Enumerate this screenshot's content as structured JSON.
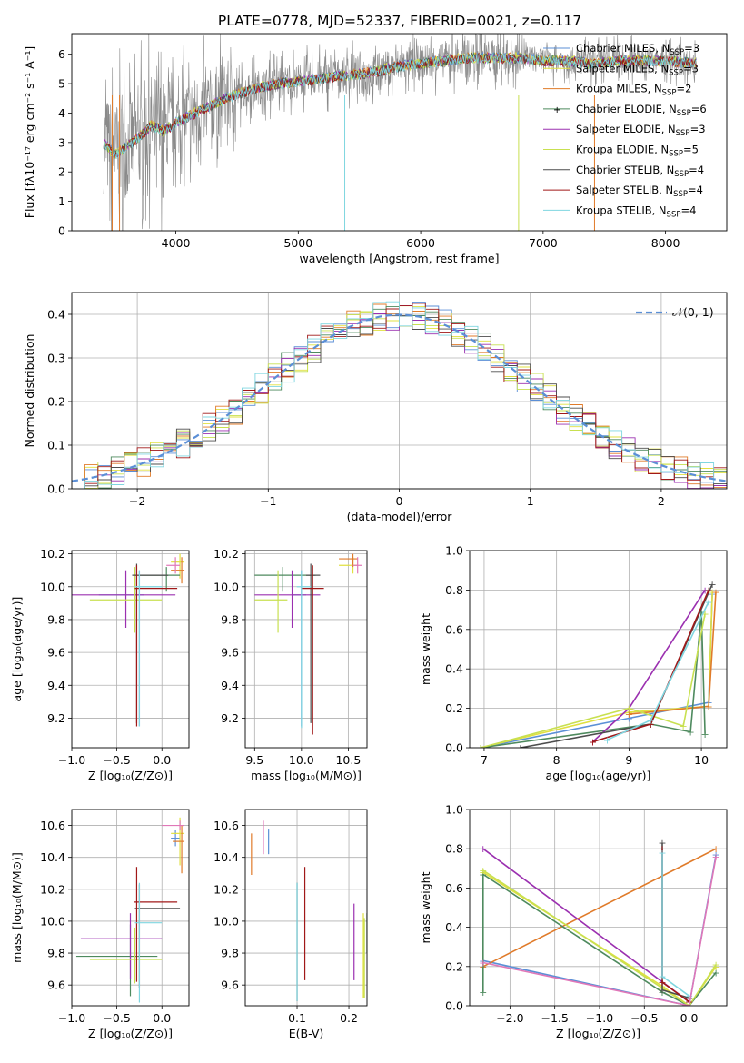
{
  "title": "PLATE=0778, MJD=52337, FIBERID=0021, z=0.117",
  "colors": [
    "#1f1f1f",
    "#e8e84a",
    "#e07b2a",
    "#5a8a5a",
    "#9b30b0",
    "#c8e050",
    "#555555",
    "#a01818",
    "#80d8e0"
  ],
  "models": [
    {
      "name": "Chabrier MILES, N",
      "sub": "SSP",
      "suffix": "=3",
      "color": "#5b8fd6"
    },
    {
      "name": "Salpeter MILES, N",
      "sub": "SSP",
      "suffix": "=3",
      "color": "#e0e040"
    },
    {
      "name": "Kroupa MILES, N",
      "sub": "SSP",
      "suffix": "=2",
      "color": "#e07b2a"
    },
    {
      "name": "Chabrier ELODIE, N",
      "sub": "SSP",
      "suffix": "=6",
      "color": "#4e8a5e"
    },
    {
      "name": "Salpeter ELODIE, N",
      "sub": "SSP",
      "suffix": "=3",
      "color": "#9b30b0"
    },
    {
      "name": "Kroupa ELODIE, N",
      "sub": "SSP",
      "suffix": "=5",
      "color": "#c8e050"
    },
    {
      "name": "Chabrier STELIB, N",
      "sub": "SSP",
      "suffix": "=4",
      "color": "#4d4d4d"
    },
    {
      "name": "Salpeter STELIB, N",
      "sub": "SSP",
      "suffix": "=4",
      "color": "#a01818"
    },
    {
      "name": "Kroupa STELIB, N",
      "sub": "SSP",
      "suffix": "=4",
      "color": "#7fd6e0"
    }
  ],
  "chart_data": [
    {
      "type": "line",
      "title": "PLATE=0778, MJD=52337, FIBERID=0021, z=0.117",
      "xlabel": "wavelength [Angstrom, rest frame]",
      "ylabel": "Flux [fλ10⁻¹⁷ erg cm⁻² s⁻¹ A⁻¹]",
      "xlim": [
        3150,
        8500
      ],
      "ylim": [
        0,
        6.7
      ],
      "xticks": [
        4000,
        5000,
        6000,
        7000,
        8000
      ],
      "yticks": [
        0,
        1,
        2,
        3,
        4,
        5,
        6
      ],
      "continuum": [
        [
          3410,
          3.0
        ],
        [
          3500,
          2.6
        ],
        [
          3600,
          2.9
        ],
        [
          3700,
          3.2
        ],
        [
          3800,
          3.6
        ],
        [
          3900,
          3.4
        ],
        [
          4000,
          3.7
        ],
        [
          4200,
          4.1
        ],
        [
          4400,
          4.5
        ],
        [
          4600,
          4.8
        ],
        [
          4800,
          5.0
        ],
        [
          5000,
          5.1
        ],
        [
          5200,
          5.2
        ],
        [
          5400,
          5.3
        ],
        [
          5600,
          5.4
        ],
        [
          5800,
          5.6
        ],
        [
          6000,
          5.7
        ],
        [
          6200,
          5.8
        ],
        [
          6400,
          5.9
        ],
        [
          6600,
          5.9
        ],
        [
          6800,
          5.9
        ],
        [
          7000,
          5.8
        ],
        [
          7200,
          5.8
        ],
        [
          7400,
          5.7
        ],
        [
          7600,
          5.8
        ],
        [
          7800,
          5.8
        ],
        [
          8000,
          5.8
        ],
        [
          8250,
          5.7
        ]
      ]
    },
    {
      "type": "bar",
      "xlabel": "(data-model)/error",
      "ylabel": "Normed distribution",
      "xlim": [
        -2.5,
        2.5
      ],
      "ylim": [
        0,
        0.45
      ],
      "xticks": [
        -2,
        -1,
        0,
        1,
        2
      ],
      "yticks": [
        0.0,
        0.1,
        0.2,
        0.3,
        0.4
      ],
      "reference": "𝒩(0, 1)",
      "bin_width": 0.1
    },
    {
      "type": "scatter",
      "xlabel": "Z [log₁₀(Z/Z⊙)]",
      "ylabel": "age  [log₁₀(age/yr)]",
      "xlim": [
        -1.0,
        0.3
      ],
      "ylim": [
        9.02,
        10.22
      ],
      "xticks": [
        -1.0,
        -0.5,
        0.0
      ],
      "yticks": [
        9.2,
        9.4,
        9.6,
        9.8,
        10.0,
        10.2
      ],
      "points": [
        {
          "x": -0.25,
          "xerr": [
            0.45,
            0.05
          ],
          "y": 9.95,
          "yerr": [
            0.8,
            0.15
          ],
          "color": "#5b8fd6"
        },
        {
          "x": 0.2,
          "xerr": [
            0.1,
            0.05
          ],
          "y": 10.15,
          "yerr": [
            0.1,
            0.05
          ],
          "color": "#e0e040"
        },
        {
          "x": 0.22,
          "xerr": [
            0.12,
            0.03
          ],
          "y": 10.1,
          "yerr": [
            0.08,
            0.08
          ],
          "color": "#e07b2a"
        },
        {
          "x": 0.05,
          "xerr": [
            0.35,
            0.15
          ],
          "y": 10.07,
          "yerr": [
            0.1,
            0.05
          ],
          "color": "#4e8a5e"
        },
        {
          "x": -0.4,
          "xerr": [
            0.6,
            0.55
          ],
          "y": 9.95,
          "yerr": [
            0.2,
            0.15
          ],
          "color": "#9b30b0"
        },
        {
          "x": -0.3,
          "xerr": [
            0.5,
            0.3
          ],
          "y": 9.92,
          "yerr": [
            0.2,
            0.2
          ],
          "color": "#c8e050"
        },
        {
          "x": -0.28,
          "xerr": [
            0.05,
            0.35
          ],
          "y": 10.07,
          "yerr": [
            0.9,
            0.07
          ],
          "color": "#4d4d4d"
        },
        {
          "x": -0.28,
          "xerr": [
            0.02,
            0.45
          ],
          "y": 9.99,
          "yerr": [
            0.84,
            0.14
          ],
          "color": "#a01818"
        },
        {
          "x": -0.25,
          "xerr": [
            0.05,
            0.25
          ],
          "y": 10.0,
          "yerr": [
            0.85,
            0.1
          ],
          "color": "#7fd6e0"
        },
        {
          "x": 0.15,
          "xerr": [
            0.1,
            0.05
          ],
          "y": 10.13,
          "yerr": [
            0.05,
            0.05
          ],
          "color": "#e077b8"
        }
      ]
    },
    {
      "type": "scatter",
      "xlabel": "mass [log₁₀(M/M⊙)]",
      "xlim": [
        9.4,
        10.7
      ],
      "ylim": [
        9.02,
        10.22
      ],
      "xticks": [
        9.5,
        10.0,
        10.5
      ],
      "yticks": [
        9.2,
        9.4,
        9.6,
        9.8,
        10.0,
        10.2
      ],
      "points": [
        {
          "x": 10.0,
          "xerr": [
            0.1,
            0.05
          ],
          "y": 9.95,
          "yerr": [
            0.8,
            0.15
          ],
          "color": "#5b8fd6"
        },
        {
          "x": 10.55,
          "xerr": [
            0.15,
            0.05
          ],
          "y": 10.13,
          "yerr": [
            0.05,
            0.05
          ],
          "color": "#e0e040"
        },
        {
          "x": 10.55,
          "xerr": [
            0.15,
            0.05
          ],
          "y": 10.17,
          "yerr": [
            0.05,
            0.03
          ],
          "color": "#e07b2a"
        },
        {
          "x": 9.8,
          "xerr": [
            0.3,
            0.35
          ],
          "y": 10.07,
          "yerr": [
            0.1,
            0.05
          ],
          "color": "#4e8a5e"
        },
        {
          "x": 9.9,
          "xerr": [
            0.4,
            0.3
          ],
          "y": 9.95,
          "yerr": [
            0.2,
            0.15
          ],
          "color": "#9b30b0"
        },
        {
          "x": 9.75,
          "xerr": [
            0.25,
            0.1
          ],
          "y": 9.92,
          "yerr": [
            0.2,
            0.18
          ],
          "color": "#c8e050"
        },
        {
          "x": 10.1,
          "xerr": [
            0.05,
            0.1
          ],
          "y": 10.07,
          "yerr": [
            0.9,
            0.07
          ],
          "color": "#4d4d4d"
        },
        {
          "x": 10.12,
          "xerr": [
            0.12,
            0.12
          ],
          "y": 9.99,
          "yerr": [
            0.89,
            0.14
          ],
          "color": "#a01818"
        },
        {
          "x": 10.0,
          "xerr": [
            0.05,
            0.1
          ],
          "y": 10.0,
          "yerr": [
            0.86,
            0.1
          ],
          "color": "#7fd6e0"
        },
        {
          "x": 10.6,
          "xerr": [
            0.05,
            0.05
          ],
          "y": 10.13,
          "yerr": [
            0.05,
            0.05
          ],
          "color": "#e077b8"
        }
      ]
    },
    {
      "type": "line",
      "xlabel": "age  [log₁₀(age/yr)]",
      "ylabel": "mass weight",
      "xlim": [
        6.8,
        10.35
      ],
      "ylim": [
        0,
        1.0
      ],
      "xticks": [
        7,
        8,
        9,
        10
      ],
      "yticks": [
        0.0,
        0.2,
        0.4,
        0.6,
        0.8,
        1.0
      ],
      "series": [
        {
          "color": "#5b8fd6",
          "x": [
            6.95,
            9.0,
            10.1,
            10.15
          ],
          "y": [
            0.0,
            0.15,
            0.23,
            0.78
          ]
        },
        {
          "color": "#e0e040",
          "x": [
            6.95,
            9.0,
            10.1,
            10.15
          ],
          "y": [
            0.0,
            0.18,
            0.21,
            0.79
          ]
        },
        {
          "color": "#e07b2a",
          "x": [
            9.0,
            10.1,
            10.2
          ],
          "y": [
            0.17,
            0.21,
            0.79
          ]
        },
        {
          "color": "#4e8a5e",
          "x": [
            6.95,
            9.3,
            9.85,
            10.0,
            10.05
          ],
          "y": [
            0.0,
            0.12,
            0.08,
            0.69,
            0.07
          ]
        },
        {
          "color": "#9b30b0",
          "x": [
            8.5,
            9.0,
            10.05
          ],
          "y": [
            0.03,
            0.2,
            0.8
          ]
        },
        {
          "color": "#c8e050",
          "x": [
            6.95,
            9.0,
            9.75,
            10.05
          ],
          "y": [
            0.0,
            0.2,
            0.11,
            0.68
          ]
        },
        {
          "color": "#4d4d4d",
          "x": [
            7.5,
            9.3,
            10.15
          ],
          "y": [
            0.0,
            0.12,
            0.83
          ]
        },
        {
          "color": "#a01818",
          "x": [
            8.5,
            9.3,
            10.1
          ],
          "y": [
            0.03,
            0.12,
            0.8
          ]
        },
        {
          "color": "#7fd6e0",
          "x": [
            8.7,
            9.3,
            10.1
          ],
          "y": [
            0.04,
            0.14,
            0.74
          ]
        }
      ]
    },
    {
      "type": "scatter",
      "xlabel": "Z [log₁₀(Z/Z⊙)]",
      "ylabel": "mass [log₁₀(M/M⊙)]",
      "xlim": [
        -1.0,
        0.3
      ],
      "ylim": [
        9.47,
        10.7
      ],
      "xticks": [
        -1.0,
        -0.5,
        0.0
      ],
      "yticks": [
        9.6,
        9.8,
        10.0,
        10.2,
        10.4,
        10.6
      ],
      "points": [
        {
          "x": 0.15,
          "xerr": [
            0.05,
            0.05
          ],
          "y": 10.52,
          "yerr": [
            0.05,
            0.05
          ],
          "color": "#5b8fd6"
        },
        {
          "x": 0.2,
          "xerr": [
            0.1,
            0.05
          ],
          "y": 10.55,
          "yerr": [
            0.2,
            0.1
          ],
          "color": "#e0e040"
        },
        {
          "x": 0.22,
          "xerr": [
            0.1,
            0.03
          ],
          "y": 10.5,
          "yerr": [
            0.2,
            0.1
          ],
          "color": "#e07b2a"
        },
        {
          "x": -0.35,
          "xerr": [
            0.6,
            0.3
          ],
          "y": 9.78,
          "yerr": [
            0.25,
            0.2
          ],
          "color": "#4e8a5e"
        },
        {
          "x": -0.35,
          "xerr": [
            0.55,
            0.35
          ],
          "y": 9.89,
          "yerr": [
            0.25,
            0.16
          ],
          "color": "#9b30b0"
        },
        {
          "x": -0.3,
          "xerr": [
            0.5,
            0.3
          ],
          "y": 9.76,
          "yerr": [
            0.15,
            0.2
          ],
          "color": "#c8e050"
        },
        {
          "x": -0.25,
          "xerr": [
            0.05,
            0.45
          ],
          "y": 10.08,
          "yerr": [
            0.5,
            0.15
          ],
          "color": "#4d4d4d"
        },
        {
          "x": -0.28,
          "xerr": [
            0.03,
            0.45
          ],
          "y": 10.12,
          "yerr": [
            0.5,
            0.22
          ],
          "color": "#a01818"
        },
        {
          "x": -0.25,
          "xerr": [
            0.05,
            0.25
          ],
          "y": 9.99,
          "yerr": [
            0.5,
            0.25
          ],
          "color": "#7fd6e0"
        },
        {
          "x": 0.2,
          "xerr": [
            0.2,
            0.05
          ],
          "y": 10.6,
          "yerr": [
            0.03,
            0.03
          ],
          "color": "#e077b8"
        }
      ]
    },
    {
      "type": "scatter",
      "xlabel": "E(B-V)",
      "xlim": [
        0.0,
        0.235
      ],
      "ylim": [
        9.47,
        10.7
      ],
      "xticks": [
        0.1,
        0.2
      ],
      "yticks": [
        9.6,
        9.8,
        10.0,
        10.2,
        10.4,
        10.6
      ],
      "points": [
        {
          "x": 0.045,
          "y": 10.52,
          "yerr": [
            0.1,
            0.06
          ],
          "color": "#5b8fd6"
        },
        {
          "x": 0.228,
          "y": 9.8,
          "yerr": [
            0.28,
            0.25
          ],
          "color": "#e0e040"
        },
        {
          "x": 0.012,
          "y": 10.44,
          "yerr": [
            0.15,
            0.11
          ],
          "color": "#e07b2a"
        },
        {
          "x": 0.235,
          "y": 9.95,
          "yerr": [
            0.15,
            0.1
          ],
          "color": "#4e8a5e"
        },
        {
          "x": 0.21,
          "y": 9.88,
          "yerr": [
            0.25,
            0.23
          ],
          "color": "#9b30b0"
        },
        {
          "x": 0.23,
          "y": 9.8,
          "yerr": [
            0.28,
            0.22
          ],
          "color": "#c8e050"
        },
        {
          "x": 0.1,
          "y": 9.9,
          "yerr": [
            0.4,
            0.34
          ],
          "color": "#4d4d4d"
        },
        {
          "x": 0.115,
          "y": 10.0,
          "yerr": [
            0.37,
            0.34
          ],
          "color": "#a01818"
        },
        {
          "x": 0.1,
          "y": 9.88,
          "yerr": [
            0.38,
            0.36
          ],
          "color": "#7fd6e0"
        },
        {
          "x": 0.035,
          "y": 10.52,
          "yerr": [
            0.1,
            0.11
          ],
          "color": "#e077b8"
        }
      ]
    },
    {
      "type": "line",
      "xlabel": "Z [log₁₀(Z/Z⊙)]",
      "ylabel": "mass weight",
      "xlim": [
        -2.45,
        0.42
      ],
      "ylim": [
        0,
        1.0
      ],
      "xticks": [
        -2.0,
        -1.5,
        -1.0,
        -0.5,
        0.0
      ],
      "yticks": [
        0.0,
        0.2,
        0.4,
        0.6,
        0.8,
        1.0
      ],
      "series": [
        {
          "color": "#5b8fd6",
          "x": [
            -2.3,
            0.0,
            0.3
          ],
          "y": [
            0.23,
            0.0,
            0.77
          ]
        },
        {
          "color": "#e0e040",
          "x": [
            -2.3,
            -0.3,
            0.0,
            0.3
          ],
          "y": [
            0.68,
            0.1,
            0.0,
            0.2
          ]
        },
        {
          "color": "#e07b2a",
          "x": [
            -2.3,
            0.3
          ],
          "y": [
            0.2,
            0.8
          ]
        },
        {
          "color": "#4e8a5e",
          "x": [
            -2.3,
            -2.3,
            -0.3,
            0.0,
            0.3
          ],
          "y": [
            0.07,
            0.67,
            0.07,
            0.0,
            0.17
          ]
        },
        {
          "color": "#9b30b0",
          "x": [
            -2.3,
            0.0
          ],
          "y": [
            0.8,
            0.02
          ]
        },
        {
          "color": "#c8e050",
          "x": [
            -2.3,
            -0.3,
            0.0,
            0.3
          ],
          "y": [
            0.69,
            0.09,
            0.0,
            0.21
          ]
        },
        {
          "color": "#4d4d4d",
          "x": [
            -0.3,
            -0.3,
            0.0
          ],
          "y": [
            0.83,
            0.08,
            0.04
          ]
        },
        {
          "color": "#a01818",
          "x": [
            -0.3,
            -0.3,
            0.0
          ],
          "y": [
            0.8,
            0.12,
            0.02
          ]
        },
        {
          "color": "#7fd6e0",
          "x": [
            -0.3,
            -0.3,
            0.0
          ],
          "y": [
            0.78,
            0.15,
            0.05
          ]
        },
        {
          "color": "#e077b8",
          "x": [
            -2.3,
            0.0,
            0.3
          ],
          "y": [
            0.22,
            0.0,
            0.76
          ]
        }
      ]
    }
  ]
}
